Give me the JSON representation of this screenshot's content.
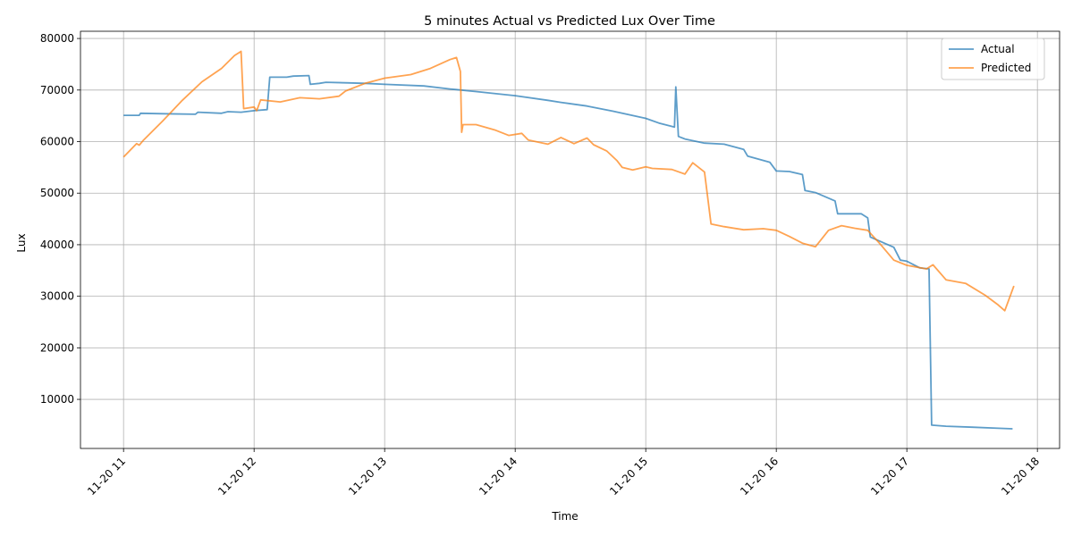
{
  "chart_data": {
    "type": "line",
    "title": "5 minutes Actual vs Predicted Lux Over Time",
    "xlabel": "Time",
    "ylabel": "Lux",
    "x_unit": "hours (2024-11-20)",
    "xlim": [
      10.67,
      18.17
    ],
    "ylim": [
      480,
      81400
    ],
    "xticks": [
      {
        "value": 11,
        "label": "11-20 11"
      },
      {
        "value": 12,
        "label": "11-20 12"
      },
      {
        "value": 13,
        "label": "11-20 13"
      },
      {
        "value": 14,
        "label": "11-20 14"
      },
      {
        "value": 15,
        "label": "11-20 15"
      },
      {
        "value": 16,
        "label": "11-20 16"
      },
      {
        "value": 17,
        "label": "11-20 17"
      },
      {
        "value": 18,
        "label": "11-20 18"
      }
    ],
    "yticks": [
      {
        "value": 10000,
        "label": "10000"
      },
      {
        "value": 20000,
        "label": "20000"
      },
      {
        "value": 30000,
        "label": "30000"
      },
      {
        "value": 40000,
        "label": "40000"
      },
      {
        "value": 50000,
        "label": "50000"
      },
      {
        "value": 60000,
        "label": "60000"
      },
      {
        "value": 70000,
        "label": "70000"
      },
      {
        "value": 80000,
        "label": "80000"
      }
    ],
    "grid": true,
    "legend_position": "top-right",
    "series": [
      {
        "name": "Actual",
        "color": "#1f77b4",
        "points": [
          [
            11.0,
            65100
          ],
          [
            11.12,
            65100
          ],
          [
            11.13,
            65500
          ],
          [
            11.3,
            65400
          ],
          [
            11.55,
            65300
          ],
          [
            11.57,
            65700
          ],
          [
            11.75,
            65500
          ],
          [
            11.8,
            65800
          ],
          [
            11.9,
            65700
          ],
          [
            12.0,
            66000
          ],
          [
            12.1,
            66200
          ],
          [
            12.12,
            72500
          ],
          [
            12.25,
            72500
          ],
          [
            12.3,
            72700
          ],
          [
            12.42,
            72800
          ],
          [
            12.43,
            71100
          ],
          [
            12.5,
            71300
          ],
          [
            12.55,
            71500
          ],
          [
            12.7,
            71400
          ],
          [
            12.85,
            71300
          ],
          [
            13.0,
            71100
          ],
          [
            13.3,
            70800
          ],
          [
            13.5,
            70200
          ],
          [
            13.7,
            69700
          ],
          [
            14.0,
            68900
          ],
          [
            14.25,
            68000
          ],
          [
            14.35,
            67600
          ],
          [
            14.55,
            66900
          ],
          [
            14.75,
            65900
          ],
          [
            15.0,
            64500
          ],
          [
            15.1,
            63600
          ],
          [
            15.22,
            62800
          ],
          [
            15.23,
            70600
          ],
          [
            15.25,
            61000
          ],
          [
            15.3,
            60500
          ],
          [
            15.45,
            59700
          ],
          [
            15.6,
            59500
          ],
          [
            15.75,
            58500
          ],
          [
            15.78,
            57200
          ],
          [
            15.95,
            56000
          ],
          [
            16.0,
            54300
          ],
          [
            16.1,
            54200
          ],
          [
            16.2,
            53600
          ],
          [
            16.22,
            50500
          ],
          [
            16.3,
            50100
          ],
          [
            16.45,
            48500
          ],
          [
            16.47,
            46000
          ],
          [
            16.65,
            46000
          ],
          [
            16.7,
            45200
          ],
          [
            16.72,
            41500
          ],
          [
            16.9,
            39500
          ],
          [
            16.95,
            37000
          ],
          [
            17.0,
            36800
          ],
          [
            17.1,
            35500
          ],
          [
            17.17,
            35300
          ],
          [
            17.19,
            5000
          ],
          [
            17.3,
            4800
          ],
          [
            17.5,
            4600
          ],
          [
            17.7,
            4400
          ],
          [
            17.81,
            4300
          ]
        ]
      },
      {
        "name": "Predicted",
        "color": "#ff7f0e",
        "points": [
          [
            11.0,
            57000
          ],
          [
            11.1,
            59600
          ],
          [
            11.12,
            59300
          ],
          [
            11.15,
            60200
          ],
          [
            11.3,
            64000
          ],
          [
            11.45,
            68000
          ],
          [
            11.6,
            71600
          ],
          [
            11.75,
            74200
          ],
          [
            11.85,
            76700
          ],
          [
            11.9,
            77500
          ],
          [
            11.92,
            66400
          ],
          [
            12.0,
            66700
          ],
          [
            12.02,
            66000
          ],
          [
            12.05,
            68100
          ],
          [
            12.2,
            67700
          ],
          [
            12.35,
            68500
          ],
          [
            12.5,
            68300
          ],
          [
            12.65,
            68800
          ],
          [
            12.7,
            69800
          ],
          [
            12.85,
            71300
          ],
          [
            13.0,
            72300
          ],
          [
            13.2,
            73000
          ],
          [
            13.35,
            74200
          ],
          [
            13.5,
            75900
          ],
          [
            13.55,
            76300
          ],
          [
            13.58,
            73600
          ],
          [
            13.59,
            61800
          ],
          [
            13.6,
            63300
          ],
          [
            13.7,
            63300
          ],
          [
            13.85,
            62200
          ],
          [
            13.95,
            61200
          ],
          [
            14.05,
            61600
          ],
          [
            14.1,
            60300
          ],
          [
            14.25,
            59500
          ],
          [
            14.35,
            60800
          ],
          [
            14.45,
            59600
          ],
          [
            14.55,
            60700
          ],
          [
            14.6,
            59400
          ],
          [
            14.7,
            58200
          ],
          [
            14.78,
            56300
          ],
          [
            14.82,
            55000
          ],
          [
            14.9,
            54500
          ],
          [
            15.0,
            55100
          ],
          [
            15.05,
            54800
          ],
          [
            15.2,
            54600
          ],
          [
            15.3,
            53700
          ],
          [
            15.36,
            55900
          ],
          [
            15.45,
            54100
          ],
          [
            15.5,
            44000
          ],
          [
            15.6,
            43500
          ],
          [
            15.75,
            42900
          ],
          [
            15.9,
            43100
          ],
          [
            16.0,
            42800
          ],
          [
            16.1,
            41600
          ],
          [
            16.2,
            40300
          ],
          [
            16.3,
            39600
          ],
          [
            16.4,
            42800
          ],
          [
            16.5,
            43700
          ],
          [
            16.6,
            43200
          ],
          [
            16.7,
            42800
          ],
          [
            16.8,
            40000
          ],
          [
            16.9,
            37000
          ],
          [
            17.0,
            36000
          ],
          [
            17.15,
            35300
          ],
          [
            17.2,
            36100
          ],
          [
            17.3,
            33200
          ],
          [
            17.45,
            32500
          ],
          [
            17.6,
            30200
          ],
          [
            17.7,
            28300
          ],
          [
            17.75,
            27200
          ],
          [
            17.82,
            32000
          ]
        ]
      }
    ]
  }
}
